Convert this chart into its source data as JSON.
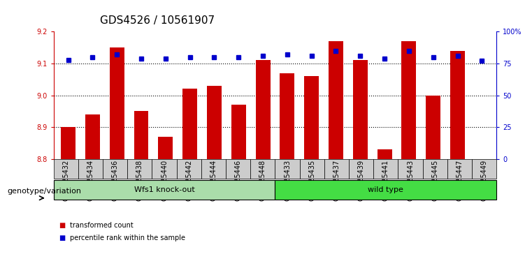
{
  "title": "GDS4526 / 10561907",
  "categories": [
    "GSM825432",
    "GSM825434",
    "GSM825436",
    "GSM825438",
    "GSM825440",
    "GSM825442",
    "GSM825444",
    "GSM825446",
    "GSM825448",
    "GSM825433",
    "GSM825435",
    "GSM825437",
    "GSM825439",
    "GSM825441",
    "GSM825443",
    "GSM825445",
    "GSM825447",
    "GSM825449"
  ],
  "bar_values": [
    8.9,
    8.94,
    9.15,
    8.95,
    8.87,
    9.02,
    9.03,
    8.97,
    9.11,
    9.07,
    9.06,
    9.17,
    9.11,
    8.83,
    9.17,
    9.0,
    9.14,
    8.8
  ],
  "percentile_values": [
    78,
    80,
    82,
    79,
    79,
    80,
    80,
    80,
    81,
    82,
    81,
    85,
    81,
    79,
    85,
    80,
    81,
    77
  ],
  "bar_color": "#cc0000",
  "percentile_color": "#0000cc",
  "ylim_left": [
    8.8,
    9.2
  ],
  "ylim_right": [
    0,
    100
  ],
  "yticks_left": [
    8.8,
    8.9,
    9.0,
    9.1,
    9.2
  ],
  "yticks_right": [
    0,
    25,
    50,
    75,
    100
  ],
  "ytick_labels_right": [
    "0",
    "25",
    "50",
    "75",
    "100%"
  ],
  "grid_values": [
    8.9,
    9.0,
    9.1
  ],
  "groups": [
    {
      "label": "Wfs1 knock-out",
      "start": 0,
      "end": 9,
      "color": "#aaddaa"
    },
    {
      "label": "wild type",
      "start": 9,
      "end": 18,
      "color": "#44dd44"
    }
  ],
  "group_label_prefix": "genotype/variation",
  "legend": [
    {
      "label": "transformed count",
      "color": "#cc0000"
    },
    {
      "label": "percentile rank within the sample",
      "color": "#0000cc"
    }
  ],
  "bar_width": 0.6,
  "background_color": "#ffffff",
  "plot_bg_color": "#ffffff",
  "title_fontsize": 11,
  "tick_fontsize": 7,
  "axis_color_left": "#cc0000",
  "axis_color_right": "#0000cc",
  "cell_color": "#cccccc"
}
